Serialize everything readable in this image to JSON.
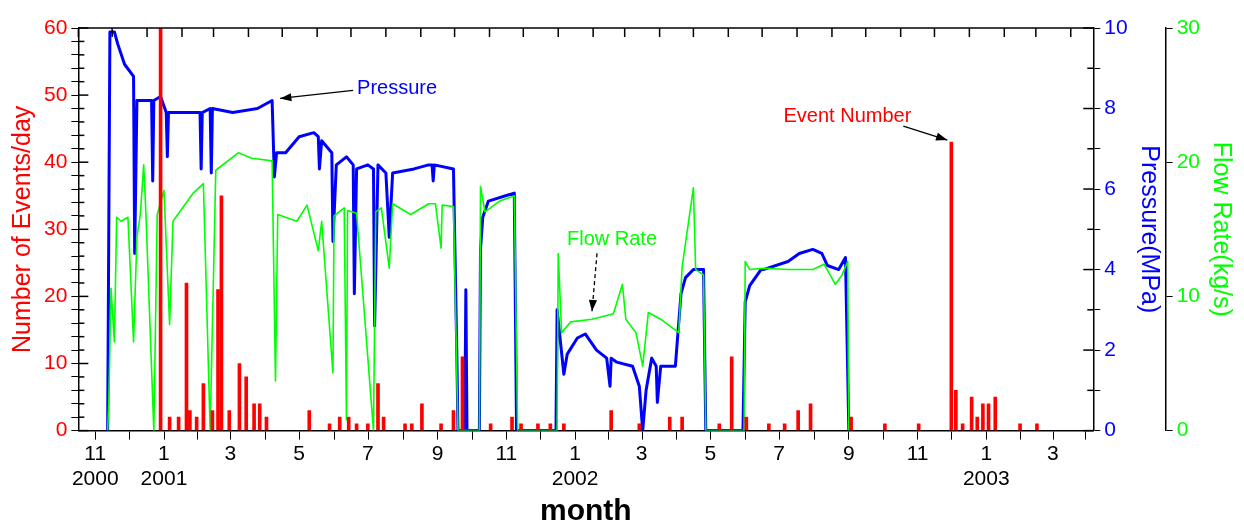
{
  "chart_data": {
    "type": "bar",
    "xlabel": "month",
    "ylabel": "Number of Events/day",
    "y2label": "Pressure(MPa)",
    "y3label": "Flow Rate(kg/s)",
    "xlim": [
      "2000-11-01",
      "2003-04-21"
    ],
    "xticks": [
      {
        "value": "2000-11-01",
        "label": null
      },
      {
        "value": "2000-12-01",
        "label": null
      },
      {
        "value": "2001-01-01",
        "label": null
      },
      {
        "value": "2001-02-01",
        "label": null
      },
      {
        "value": "2001-03-01",
        "label": null
      },
      {
        "value": "2001-04-01",
        "label": null
      },
      {
        "value": "2001-05-01",
        "label": null
      },
      {
        "value": "2001-06-01",
        "label": null
      },
      {
        "value": "2001-07-01",
        "label": null
      },
      {
        "value": "2001-08-01",
        "label": null
      },
      {
        "value": "2001-09-01",
        "label": null
      },
      {
        "value": "2001-10-01",
        "label": null
      },
      {
        "value": "2001-11-01",
        "label": null
      },
      {
        "value": "2001-12-01",
        "label": null
      },
      {
        "value": "2002-01-01",
        "label": null
      },
      {
        "value": "2002-02-01",
        "label": null
      },
      {
        "value": "2002-03-01",
        "label": null
      },
      {
        "value": "2002-04-01",
        "label": null
      },
      {
        "value": "2002-05-01",
        "label": null
      },
      {
        "value": "2002-06-01",
        "label": null
      },
      {
        "value": "2002-07-01",
        "label": null
      },
      {
        "value": "2002-08-01",
        "label": null
      },
      {
        "value": "2002-09-01",
        "label": null
      },
      {
        "value": "2002-10-01",
        "label": null
      },
      {
        "value": "2002-11-01",
        "label": null
      },
      {
        "value": "2002-12-01",
        "label": null
      },
      {
        "value": "2003-01-01",
        "label": null
      },
      {
        "value": "2003-02-01",
        "label": null
      },
      {
        "value": "2003-03-01",
        "label": null
      },
      {
        "value": "2003-04-01",
        "label": null
      },
      {
        "value": "2000-11-16",
        "label": "11\n2000"
      },
      {
        "value": "2001-01-16",
        "label": "1\n2001"
      },
      {
        "value": "2001-03-16",
        "label": "3"
      },
      {
        "value": "2001-05-16",
        "label": "5"
      },
      {
        "value": "2001-07-16",
        "label": "7"
      },
      {
        "value": "2001-09-16",
        "label": "9"
      },
      {
        "value": "2001-11-16",
        "label": "11"
      },
      {
        "value": "2002-01-16",
        "label": "1\n2002"
      },
      {
        "value": "2002-03-16",
        "label": "3"
      },
      {
        "value": "2002-05-16",
        "label": "5"
      },
      {
        "value": "2002-07-16",
        "label": "7"
      },
      {
        "value": "2002-09-16",
        "label": "9"
      },
      {
        "value": "2002-11-16",
        "label": "11"
      },
      {
        "value": "2003-01-16",
        "label": "1\n2003"
      },
      {
        "value": "2003-03-16",
        "label": "3"
      }
    ],
    "ylim": [
      0,
      60
    ],
    "yticks": [
      0,
      {
        "value": 2,
        "label": null
      },
      {
        "value": 4,
        "label": null
      },
      {
        "value": 6,
        "label": null
      },
      {
        "value": 8,
        "label": null
      },
      10,
      {
        "value": 12,
        "label": null
      },
      {
        "value": 14,
        "label": null
      },
      {
        "value": 16,
        "label": null
      },
      {
        "value": 18,
        "label": null
      },
      20,
      {
        "value": 22,
        "label": null
      },
      {
        "value": 24,
        "label": null
      },
      {
        "value": 26,
        "label": null
      },
      {
        "value": 28,
        "label": null
      },
      30,
      {
        "value": 32,
        "label": null
      },
      {
        "value": 34,
        "label": null
      },
      {
        "value": 36,
        "label": null
      },
      {
        "value": 38,
        "label": null
      },
      40,
      {
        "value": 42,
        "label": null
      },
      {
        "value": 44,
        "label": null
      },
      {
        "value": 46,
        "label": null
      },
      {
        "value": 48,
        "label": null
      },
      50,
      {
        "value": 52,
        "label": null
      },
      {
        "value": 54,
        "label": null
      },
      {
        "value": 56,
        "label": null
      },
      {
        "value": 58,
        "label": null
      },
      60
    ],
    "y2lim": [
      0,
      10
    ],
    "y2ticks": [
      0,
      {
        "value": 1,
        "label": null
      },
      2,
      {
        "value": 3,
        "label": null
      },
      4,
      {
        "value": 5,
        "label": null
      },
      6,
      {
        "value": 7,
        "label": null
      },
      8,
      {
        "value": 9,
        "label": null
      },
      10
    ],
    "y3lim": [
      0,
      30
    ],
    "y3ticks": [
      0,
      10,
      20,
      30
    ],
    "grid": false,
    "legend": false,
    "marker": "none",
    "series": [
      {
        "name": "Event Number",
        "color": "#ff0000",
        "x": [
          "2001-01-13",
          "2001-01-21",
          "2001-01-29",
          "2001-02-05",
          "2001-02-08",
          "2001-02-14",
          "2001-02-20",
          "2001-02-28",
          "2001-03-05",
          "2001-03-08",
          "2001-03-15",
          "2001-03-24",
          "2001-03-30",
          "2001-04-06",
          "2001-04-11",
          "2001-04-17",
          "2001-05-25",
          "2001-06-12",
          "2001-06-21",
          "2001-06-29",
          "2001-07-06",
          "2001-07-16",
          "2001-07-25",
          "2001-07-30",
          "2001-08-18",
          "2001-08-24",
          "2001-09-02",
          "2001-09-19",
          "2001-09-30",
          "2001-10-08",
          "2001-11-02",
          "2001-11-21",
          "2001-11-29",
          "2001-12-14",
          "2001-12-25",
          "2002-01-06",
          "2002-02-17",
          "2002-03-14",
          "2002-04-10",
          "2002-04-21",
          "2002-05-24",
          "2002-06-04",
          "2002-06-17",
          "2002-07-07",
          "2002-07-21",
          "2002-08-02",
          "2002-08-13",
          "2002-09-18",
          "2002-10-18",
          "2002-11-17",
          "2002-12-16",
          "2002-12-20",
          "2002-12-26",
          "2003-01-03",
          "2003-01-08",
          "2003-01-13",
          "2003-01-18",
          "2003-01-24",
          "2003-02-15",
          "2003-03-02"
        ],
        "values": [
          60,
          2,
          2,
          22,
          3,
          2,
          7,
          3,
          21,
          35,
          3,
          10,
          8,
          4,
          4,
          2,
          3,
          1,
          2,
          2,
          1,
          1,
          7,
          2,
          1,
          1,
          4,
          1,
          3,
          11,
          1,
          2,
          1,
          1,
          1,
          1,
          3,
          1,
          2,
          2,
          1,
          11,
          2,
          1,
          1,
          3,
          4,
          2,
          1,
          1,
          43,
          6,
          1,
          5,
          2,
          4,
          4,
          5,
          1,
          1
        ]
      },
      {
        "name": "Pressure",
        "type": "line",
        "axis": "y2",
        "color": "#0000ff",
        "x": [
          "2000-11-27",
          "2000-11-29",
          "2000-12-03",
          "2000-12-06",
          "2000-12-12",
          "2000-12-20",
          "2000-12-21",
          "2000-12-23",
          "2000-12-28",
          "2001-01-05",
          "2001-01-06",
          "2001-01-07",
          "2001-01-13",
          "2001-01-18",
          "2001-01-19",
          "2001-01-20",
          "2001-01-23",
          "2001-02-17",
          "2001-02-18",
          "2001-02-19",
          "2001-02-26",
          "2001-02-27",
          "2001-02-28",
          "2001-03-18",
          "2001-04-09",
          "2001-04-22",
          "2001-04-24",
          "2001-04-26",
          "2001-05-04",
          "2001-05-16",
          "2001-05-29",
          "2001-06-02",
          "2001-06-03",
          "2001-06-05",
          "2001-06-08",
          "2001-06-14",
          "2001-06-15",
          "2001-06-18",
          "2001-06-27",
          "2001-07-03",
          "2001-07-04",
          "2001-07-06",
          "2001-07-16",
          "2001-07-21",
          "2001-07-22",
          "2001-07-25",
          "2001-08-01",
          "2001-08-04",
          "2001-08-07",
          "2001-08-26",
          "2001-09-08",
          "2001-09-11",
          "2001-09-12",
          "2001-09-13",
          "2001-09-30",
          "2001-10-03",
          "2001-10-04",
          "2001-10-10",
          "2001-10-11",
          "2001-10-12",
          "2001-10-23",
          "2001-10-24",
          "2001-10-26",
          "2001-10-31",
          "2001-11-23",
          "2001-11-25",
          "2001-12-30",
          "2001-12-31",
          "2002-01-06",
          "2002-01-09",
          "2002-01-18",
          "2002-01-25",
          "2002-02-04",
          "2002-02-13",
          "2002-02-16",
          "2002-02-17",
          "2002-02-22",
          "2002-03-08",
          "2002-03-14",
          "2002-03-17",
          "2002-03-20",
          "2002-03-25",
          "2002-03-29",
          "2002-03-30",
          "2002-04-02",
          "2002-04-15",
          "2002-04-20",
          "2002-04-24",
          "2002-05-01",
          "2002-05-10",
          "2002-05-12",
          "2002-06-14",
          "2002-06-15",
          "2002-06-16",
          "2002-06-20",
          "2002-06-30",
          "2002-07-02",
          "2002-07-24",
          "2002-08-03",
          "2002-08-15",
          "2002-08-23",
          "2002-08-28",
          "2002-09-07",
          "2002-09-13",
          "2002-09-16"
        ],
        "values": [
          0,
          9.9,
          9.9,
          9.6,
          9.1,
          8.8,
          4.4,
          8.2,
          8.2,
          8.2,
          6.2,
          8.2,
          8.3,
          7.9,
          6.8,
          7.9,
          7.9,
          7.9,
          6.5,
          7.9,
          8.0,
          6.4,
          8.0,
          7.9,
          8.0,
          8.2,
          6.3,
          6.9,
          6.9,
          7.3,
          7.4,
          7.3,
          6.5,
          7.2,
          7.1,
          6.9,
          4.7,
          6.6,
          6.8,
          6.6,
          3.4,
          6.5,
          6.6,
          6.5,
          2.6,
          6.6,
          6.4,
          4.8,
          6.4,
          6.5,
          6.6,
          6.6,
          6.2,
          6.6,
          6.5,
          1.9,
          0,
          0,
          3.5,
          0,
          0,
          4.5,
          5.3,
          5.7,
          5.9,
          0,
          0,
          3.0,
          1.4,
          1.9,
          2.3,
          2.4,
          2.0,
          1.8,
          1.1,
          1.8,
          1.7,
          1.6,
          1.1,
          0,
          1.0,
          1.8,
          1.6,
          0.7,
          1.6,
          1.6,
          3.4,
          3.8,
          4.0,
          4.0,
          0,
          0,
          1.6,
          3.2,
          3.6,
          4.0,
          4.0,
          4.2,
          4.4,
          4.5,
          4.4,
          4.1,
          4.0,
          4.3,
          0
        ]
      },
      {
        "name": "Flow Rate",
        "type": "line",
        "axis": "y3",
        "color": "#00ff00",
        "x": [
          "2000-11-27",
          "2000-11-28",
          "2000-11-30",
          "2000-12-03",
          "2000-12-05",
          "2000-12-09",
          "2000-12-15",
          "2000-12-20",
          "2000-12-23",
          "2000-12-26",
          "2000-12-29",
          "2000-12-31",
          "2001-01-07",
          "2001-01-10",
          "2001-01-16",
          "2001-01-21",
          "2001-01-24",
          "2001-02-11",
          "2001-02-20",
          "2001-02-26",
          "2001-03-03",
          "2001-03-23",
          "2001-04-04",
          "2001-04-22",
          "2001-04-25",
          "2001-04-27",
          "2001-05-14",
          "2001-05-23",
          "2001-06-02",
          "2001-06-05",
          "2001-06-15",
          "2001-06-16",
          "2001-06-25",
          "2001-06-27",
          "2001-06-28",
          "2001-07-06",
          "2001-07-21",
          "2001-07-23",
          "2001-07-28",
          "2001-08-04",
          "2001-08-07",
          "2001-08-23",
          "2001-09-08",
          "2001-09-14",
          "2001-09-19",
          "2001-09-20",
          "2001-09-30",
          "2001-10-04",
          "2001-10-23",
          "2001-10-24",
          "2001-10-28",
          "2001-11-10",
          "2001-11-23",
          "2001-11-26",
          "2001-12-31",
          "2002-01-01",
          "2002-01-04",
          "2002-01-12",
          "2002-01-31",
          "2002-02-19",
          "2002-02-27",
          "2002-03-02",
          "2002-03-11",
          "2002-03-17",
          "2002-03-22",
          "2002-04-02",
          "2002-04-18",
          "2002-04-21",
          "2002-05-01",
          "2002-05-03",
          "2002-05-10",
          "2002-05-12",
          "2002-06-15",
          "2002-06-16",
          "2002-06-20",
          "2002-07-05",
          "2002-07-24",
          "2002-08-15",
          "2002-08-25",
          "2002-09-04",
          "2002-09-10",
          "2002-09-15",
          "2002-09-16"
        ],
        "values": [
          0,
          2.0,
          10.6,
          6.6,
          15.9,
          15.6,
          15.9,
          6.6,
          14.4,
          16.1,
          19.8,
          16.1,
          0,
          16.1,
          17.9,
          7.9,
          15.6,
          17.7,
          18.4,
          0,
          19.4,
          20.7,
          20.3,
          20.1,
          3.7,
          16.1,
          15.6,
          16.8,
          13.4,
          15.6,
          4.3,
          16.0,
          16.6,
          0.8,
          16.4,
          16.2,
          0,
          16.3,
          16.6,
          12.1,
          16.9,
          16.1,
          16.9,
          16.9,
          13.6,
          16.8,
          16.7,
          0,
          0,
          18.2,
          16.3,
          17.1,
          17.5,
          0,
          0,
          13.2,
          7.3,
          8.1,
          8.3,
          8.7,
          10.9,
          8.3,
          7.3,
          4.8,
          8.8,
          8.3,
          7.3,
          12.2,
          18.1,
          12.0,
          11.6,
          0,
          0,
          12.6,
          12.0,
          12.1,
          12.0,
          12.0,
          12.4,
          10.9,
          11.6,
          12.6,
          0
        ]
      }
    ]
  }
}
